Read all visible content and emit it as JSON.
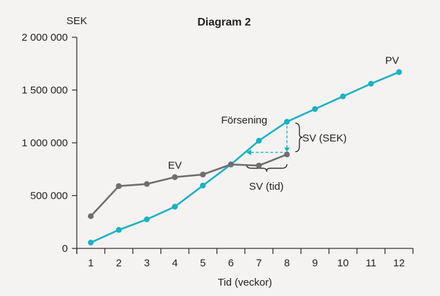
{
  "chart_data": {
    "type": "line",
    "title": "Diagram 2",
    "ylabel": "SEK",
    "xlabel": "Tid (veckor)",
    "x": [
      1,
      2,
      3,
      4,
      5,
      6,
      7,
      8,
      9,
      10,
      11,
      12
    ],
    "xlim": [
      0.5,
      12.5
    ],
    "ylim": [
      0,
      2000000
    ],
    "y_ticks": [
      0,
      500000,
      1000000,
      1500000,
      2000000
    ],
    "y_tick_labels": [
      "0",
      "500 000",
      "1 000 000",
      "1 500 000",
      "2 000 000"
    ],
    "x_tick_labels": [
      "1",
      "2",
      "3",
      "4",
      "5",
      "6",
      "7",
      "8",
      "9",
      "10",
      "11",
      "12"
    ],
    "grid": false,
    "series": [
      {
        "name": "PV",
        "color": "#1ab1c6",
        "x": [
          1,
          2,
          3,
          4,
          5,
          6,
          7,
          8,
          9,
          10,
          11,
          12
        ],
        "values": [
          55000,
          175000,
          275000,
          395000,
          595000,
          795000,
          1020000,
          1200000,
          1320000,
          1440000,
          1560000,
          1670000
        ]
      },
      {
        "name": "EV",
        "color": "#6e6e6e",
        "x": [
          1,
          2,
          3,
          4,
          5,
          6,
          7,
          8
        ],
        "values": [
          305000,
          590000,
          610000,
          675000,
          700000,
          795000,
          785000,
          890000
        ]
      }
    ],
    "annotations": {
      "delay_label": "Försening",
      "sv_sek_label": "SV (SEK)",
      "sv_time_label": "SV (tid)"
    }
  }
}
